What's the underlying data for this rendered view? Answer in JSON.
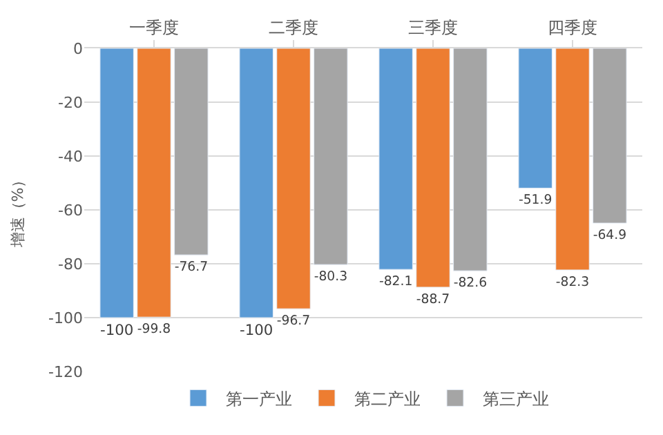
{
  "chart_data": {
    "type": "bar",
    "ylabel": "增速（%）",
    "categories": [
      "一季度",
      "二季度",
      "三季度",
      "四季度"
    ],
    "series": [
      {
        "name": "第一产业",
        "color": "#5b9bd5",
        "values": [
          -100,
          -100,
          -82.1,
          -51.9
        ]
      },
      {
        "name": "第二产业",
        "color": "#ed7d31",
        "values": [
          -99.8,
          -96.7,
          -88.7,
          -82.3
        ]
      },
      {
        "name": "第三产业",
        "color": "#a5a5a5",
        "values": [
          -76.7,
          -80.3,
          -82.6,
          -64.9
        ]
      }
    ],
    "ylim": [
      -120,
      0
    ],
    "yticks": [
      -120,
      -100,
      -80,
      -60,
      -40,
      -20,
      0
    ],
    "grid": "y",
    "legend": "bottom",
    "data_labels": true
  }
}
